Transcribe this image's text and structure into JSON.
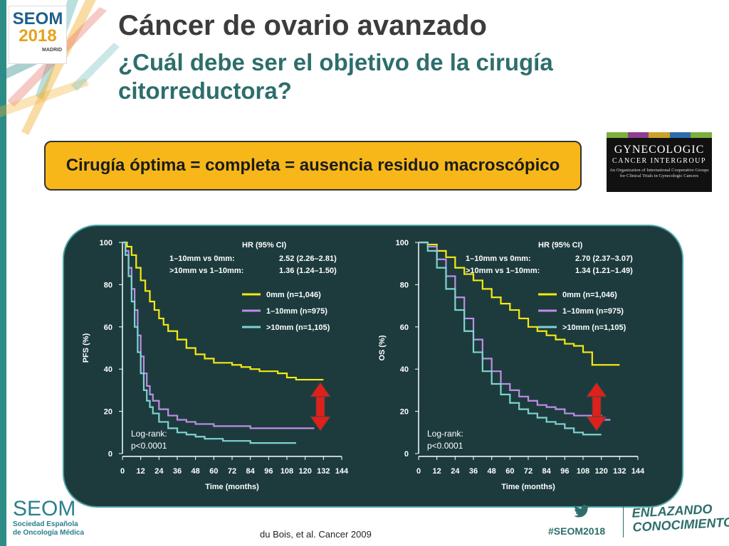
{
  "logo": {
    "line1": "SEOM",
    "line2": "2018",
    "city": "MADRID"
  },
  "title": "Cáncer de ovario avanzado",
  "subtitle": "¿Cuál debe ser el objetivo de la cirugía citorreductora?",
  "highlight": "Cirugía óptima = completa = ausencia residuo macroscópico",
  "gcig": {
    "line1": "GYNECOLOGIC",
    "line2": "CANCER INTERGROUP",
    "line3": "An Organization of International Cooperative Groups for Clinical Trials in Gynecologic Cancers",
    "bar_colors": [
      "#7bb03c",
      "#8e3f8e",
      "#c9a227",
      "#2b6cb0",
      "#7bb03c"
    ]
  },
  "colors": {
    "yellow": "#f4ea12",
    "purple": "#bd8ee8",
    "cyan": "#7fd3d1",
    "panel": "#1d3b3d",
    "arrow": "#e0201b"
  },
  "chart_data": [
    {
      "type": "line",
      "ylabel": "PFS (%)",
      "xlabel": "Time (months)",
      "xticks": [
        0,
        12,
        24,
        36,
        48,
        60,
        72,
        84,
        96,
        108,
        120,
        132,
        144
      ],
      "yticks": [
        0,
        20,
        40,
        60,
        80,
        100
      ],
      "xlim": [
        0,
        144
      ],
      "ylim": [
        0,
        100
      ],
      "hr": {
        "title": "HR (95% CI)",
        "rows": [
          {
            "label": "1–10mm vs 0mm:",
            "value": "2.52 (2.26–2.81)"
          },
          {
            "label": ">10mm vs 1–10mm:",
            "value": "1.36 (1.24–1.50)"
          }
        ]
      },
      "logrank": [
        "Log-rank:",
        "p<0.0001"
      ],
      "legend_position": "right",
      "series": [
        {
          "name": "0mm (n=1,046)",
          "color": "#f4ea12",
          "x": [
            0,
            3,
            6,
            9,
            12,
            15,
            18,
            21,
            24,
            27,
            30,
            36,
            42,
            48,
            54,
            60,
            66,
            72,
            78,
            84,
            90,
            96,
            102,
            108,
            114,
            120,
            126,
            132
          ],
          "y": [
            100,
            98,
            94,
            88,
            82,
            77,
            72,
            68,
            64,
            61,
            58,
            54,
            50,
            47,
            45,
            43,
            43,
            42,
            41,
            40,
            39,
            39,
            38,
            36,
            35,
            35,
            35,
            35
          ]
        },
        {
          "name": "1–10mm (n=975)",
          "color": "#bd8ee8",
          "x": [
            0,
            2,
            4,
            6,
            8,
            10,
            12,
            14,
            16,
            18,
            20,
            24,
            30,
            36,
            42,
            48,
            54,
            60,
            66,
            72,
            84,
            96,
            108,
            120,
            126
          ],
          "y": [
            100,
            96,
            88,
            78,
            68,
            56,
            46,
            38,
            32,
            28,
            25,
            21,
            18,
            16,
            15,
            14,
            14,
            13,
            13,
            13,
            12,
            12,
            12,
            12,
            12
          ]
        },
        {
          "name": ">10mm (n=1,105)",
          "color": "#7fd3d1",
          "x": [
            0,
            2,
            4,
            6,
            8,
            10,
            12,
            14,
            16,
            18,
            20,
            24,
            30,
            36,
            42,
            48,
            54,
            60,
            66,
            72,
            84,
            96,
            108,
            114
          ],
          "y": [
            100,
            94,
            84,
            72,
            60,
            48,
            38,
            30,
            25,
            22,
            19,
            15,
            12,
            10,
            9,
            8,
            7,
            7,
            6,
            6,
            5,
            5,
            5,
            5
          ]
        }
      ]
    },
    {
      "type": "line",
      "ylabel": "OS (%)",
      "xlabel": "Time (months)",
      "xticks": [
        0,
        12,
        24,
        36,
        48,
        60,
        72,
        84,
        96,
        108,
        120,
        132,
        144
      ],
      "yticks": [
        0,
        20,
        40,
        60,
        80,
        100
      ],
      "xlim": [
        0,
        144
      ],
      "ylim": [
        0,
        100
      ],
      "hr": {
        "title": "HR (95% CI)",
        "rows": [
          {
            "label": "1–10mm vs 0mm:",
            "value": "2.70 (2.37–3.07)"
          },
          {
            "label": ">10mm vs 1–10mm:",
            "value": "1.34 (1.21–1.49)"
          }
        ]
      },
      "logrank": [
        "Log-rank:",
        "p<0.0001"
      ],
      "legend_position": "right",
      "series": [
        {
          "name": "0mm (n=1,046)",
          "color": "#f4ea12",
          "x": [
            0,
            6,
            12,
            18,
            24,
            30,
            36,
            42,
            48,
            54,
            60,
            66,
            72,
            78,
            84,
            90,
            96,
            102,
            108,
            114,
            120,
            126,
            132
          ],
          "y": [
            100,
            99,
            96,
            93,
            88,
            85,
            82,
            78,
            74,
            71,
            68,
            64,
            60,
            58,
            56,
            54,
            52,
            51,
            48,
            42,
            42,
            42,
            42
          ]
        },
        {
          "name": "1–10mm (n=975)",
          "color": "#bd8ee8",
          "x": [
            0,
            6,
            12,
            18,
            24,
            30,
            36,
            42,
            48,
            54,
            60,
            66,
            72,
            78,
            84,
            90,
            96,
            102,
            108,
            114,
            120,
            126
          ],
          "y": [
            100,
            98,
            92,
            84,
            74,
            64,
            54,
            45,
            39,
            33,
            30,
            27,
            25,
            23,
            22,
            21,
            19,
            18,
            18,
            18,
            16,
            16
          ]
        },
        {
          "name": ">10mm (n=1,105)",
          "color": "#7fd3d1",
          "x": [
            0,
            6,
            12,
            18,
            24,
            30,
            36,
            42,
            48,
            54,
            60,
            66,
            72,
            78,
            84,
            90,
            96,
            102,
            108,
            114,
            120
          ],
          "y": [
            100,
            96,
            88,
            78,
            68,
            58,
            48,
            39,
            33,
            28,
            24,
            21,
            19,
            17,
            15,
            14,
            12,
            10,
            9,
            9,
            9
          ]
        }
      ]
    }
  ],
  "footer": {
    "seom": "SEOM",
    "society_line1": "Sociedad Española",
    "society_line2": "de Oncología Médica",
    "citation": "du Bois, et al. Cancer 2009",
    "hashtag": "#SEOM2018",
    "slogan_line1": "ENLAZANDO",
    "slogan_line2": "CONOCIMIENTO"
  }
}
